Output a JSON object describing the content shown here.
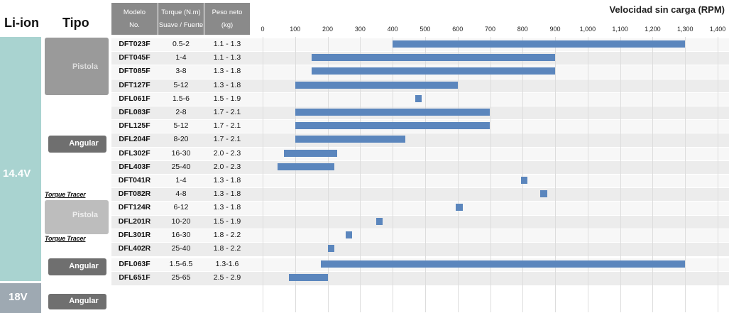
{
  "header": {
    "liion": "Li-ion",
    "tipo": "Tipo",
    "modelo_line1": "Modelo",
    "modelo_line2": "No.",
    "torque_line1": "Torque (N.m)",
    "torque_line2": "Suave / Fuerte",
    "peso_line1": "Peso neto",
    "peso_line2": "(kg)"
  },
  "groups": {
    "v144": "14.4V",
    "v18": "18V",
    "pistola": "Pistola",
    "angular": "Angular",
    "torque_tracer": "Torque Tracer"
  },
  "colors": {
    "header_bg": "#8a8a8a",
    "voltage_bg": "#a9d3d0",
    "bar": "#5b86bd",
    "row_alt": "#ececec"
  },
  "chart_data": {
    "type": "bar",
    "orientation": "horizontal-range",
    "title": "Velocidad sin carga (RPM)",
    "xlim": [
      0,
      1400
    ],
    "ticks": [
      "0",
      "100",
      "200",
      "300",
      "400",
      "500",
      "600",
      "700",
      "800",
      "900",
      "1,000",
      "1,100",
      "1,200",
      "1,300",
      "1,400"
    ],
    "grid": true,
    "rows": [
      {
        "model": "DFT023F",
        "torque": "0.5-2",
        "weight": "1.1 - 1.3",
        "min": 400,
        "max": 1300
      },
      {
        "model": "DFT045F",
        "torque": "1-4",
        "weight": "1.1 - 1.3",
        "min": 150,
        "max": 900
      },
      {
        "model": "DFT085F",
        "torque": "3-8",
        "weight": "1.3 - 1.8",
        "min": 150,
        "max": 900
      },
      {
        "model": "DFT127F",
        "torque": "5-12",
        "weight": "1.3 - 1.8",
        "min": 100,
        "max": 600
      },
      {
        "model": "DFL061F",
        "torque": "1.5-6",
        "weight": "1.5 - 1.9",
        "min": 470,
        "max": 490
      },
      {
        "model": "DFL083F",
        "torque": "2-8",
        "weight": "1.7 - 2.1",
        "min": 100,
        "max": 700
      },
      {
        "model": "DFL125F",
        "torque": "5-12",
        "weight": "1.7 - 2.1",
        "min": 100,
        "max": 700
      },
      {
        "model": "DFL204F",
        "torque": "8-20",
        "weight": "1.7 - 2.1",
        "min": 100,
        "max": 440
      },
      {
        "model": "DFL302F",
        "torque": "16-30",
        "weight": "2.0 - 2.3",
        "min": 65,
        "max": 230
      },
      {
        "model": "DFL403F",
        "torque": "25-40",
        "weight": "2.0 - 2.3",
        "min": 45,
        "max": 220
      },
      {
        "model": "DFT041R",
        "torque": "1-4",
        "weight": "1.3 - 1.8",
        "min": 795,
        "max": 815
      },
      {
        "model": "DFT082R",
        "torque": "4-8",
        "weight": "1.3 - 1.8",
        "min": 855,
        "max": 875
      },
      {
        "model": "DFT124R",
        "torque": "6-12",
        "weight": "1.3 - 1.8",
        "min": 595,
        "max": 615
      },
      {
        "model": "DFL201R",
        "torque": "10-20",
        "weight": "1.5 - 1.9",
        "min": 350,
        "max": 370
      },
      {
        "model": "DFL301R",
        "torque": "16-30",
        "weight": "1.8 - 2.2",
        "min": 255,
        "max": 275
      },
      {
        "model": "DFL402R",
        "torque": "25-40",
        "weight": "1.8 - 2.2",
        "min": 200,
        "max": 220
      },
      {
        "model": "DFL063F",
        "torque": "1.5-6.5",
        "weight": "1.3-1.6",
        "min": 180,
        "max": 1300
      },
      {
        "model": "DFL651F",
        "torque": "25-65",
        "weight": "2.5 - 2.9",
        "min": 80,
        "max": 200
      }
    ]
  }
}
